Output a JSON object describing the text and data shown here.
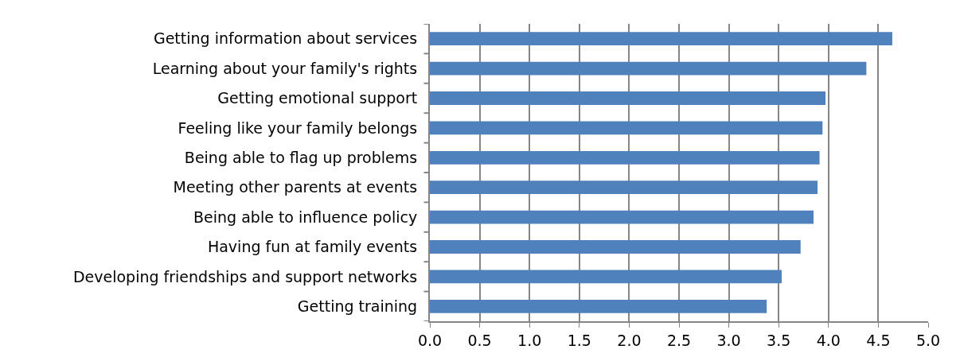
{
  "chart_data": {
    "type": "bar",
    "orientation": "horizontal",
    "categories": [
      "Getting information about services",
      "Learning about your family's rights",
      "Getting emotional support",
      "Feeling like your family belongs",
      "Being able to flag up problems",
      "Meeting other parents at events",
      "Being able to influence policy",
      "Having fun at family events",
      "Developing friendships and support networks",
      "Getting training"
    ],
    "values": [
      4.64,
      4.38,
      3.97,
      3.94,
      3.91,
      3.89,
      3.85,
      3.72,
      3.53,
      3.38
    ],
    "color": "#4f81bd",
    "xlim": [
      0,
      5
    ],
    "xticks": [
      {
        "value": 0,
        "label": "0.0"
      },
      0.5,
      {
        "value": 1,
        "label": "1.0"
      },
      1.5,
      {
        "value": 2,
        "label": "2.0"
      },
      2.5,
      {
        "value": 3,
        "label": "3.0"
      },
      3.5,
      {
        "value": 4,
        "label": "4.0"
      },
      4.5,
      {
        "value": 5,
        "label": "5.0"
      }
    ],
    "grid": "x",
    "legend": false
  }
}
